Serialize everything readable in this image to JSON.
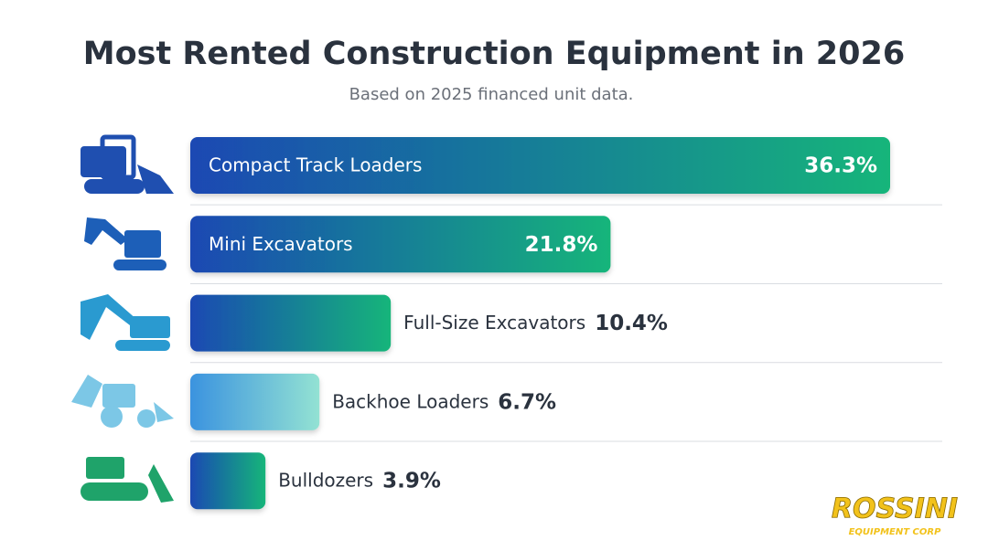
{
  "chart_data": {
    "type": "hbar",
    "title": "Most Rented Construction Equipment in 2026",
    "subtitle": "Based on 2025 financed unit data.",
    "categories": [
      "Compact Track Loaders",
      "Mini Excavators",
      "Full-Size Excavators",
      "Backhoe Loaders",
      "Bulldozers"
    ],
    "values": [
      36.3,
      21.8,
      10.4,
      6.7,
      3.9
    ],
    "value_labels": [
      "36.3%",
      "21.8%",
      "10.4%",
      "6.7%",
      "3.9%"
    ],
    "colors": [
      [
        "#1a49b3",
        "#17b57a"
      ],
      [
        "#1a49b3",
        "#17b57a"
      ],
      [
        "#1a49b3",
        "#17b57a"
      ],
      [
        "#3b93df",
        "#93e2d3"
      ],
      [
        "#1a49b3",
        "#17b57a"
      ]
    ]
  },
  "logo": {
    "name": "ROSSINI",
    "tagline": "EQUIPMENT CORP"
  }
}
